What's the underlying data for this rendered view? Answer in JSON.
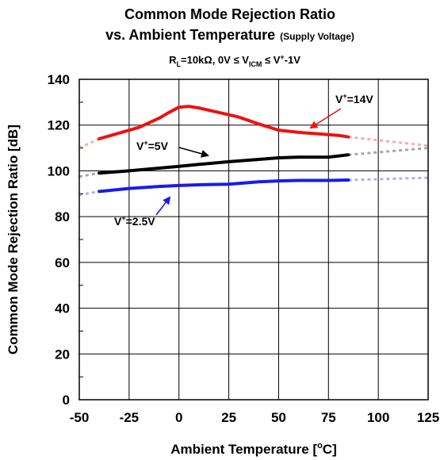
{
  "chart_data": {
    "type": "line",
    "title_line1": "Common Mode Rejection Ratio",
    "title_line2": "vs. Ambient Temperature",
    "title_suffix": "(Supply Voltage)",
    "condition": {
      "r_prefix": "R",
      "r_sub": "L",
      "r_text": "=10kΩ, 0V ≤ V",
      "v_sub": "ICM",
      "v_text": " ≤ V",
      "v_sup": "+",
      "v_tail": "-1V"
    },
    "xlabel": {
      "main": "Ambient Temperature [",
      "sup": "o",
      "tail": "C]"
    },
    "ylabel": "Common Mode Rejection Ratio [dB]",
    "xlim": [
      -50,
      125
    ],
    "ylim": [
      0,
      140
    ],
    "xticks": [
      "-50",
      "-25",
      "0",
      "25",
      "50",
      "75",
      "100",
      "125"
    ],
    "yticks": [
      "0",
      "20",
      "40",
      "60",
      "80",
      "100",
      "120",
      "140"
    ],
    "grid": true,
    "series": [
      {
        "name": "V+=14V",
        "label_main": "V",
        "label_sup": "+",
        "label_tail": "=14V",
        "color": "#ee1111",
        "x": [
          -40,
          -30,
          -20,
          -10,
          -5,
          0,
          5,
          10,
          20,
          30,
          40,
          50,
          60,
          70,
          80,
          85
        ],
        "y": [
          114,
          116.5,
          119,
          123,
          125.5,
          127.8,
          128.2,
          127.5,
          125.5,
          123.5,
          120.5,
          117.8,
          116.8,
          116.2,
          115.5,
          114.8
        ],
        "extrap_left": {
          "x": [
            -50,
            -40
          ],
          "y": [
            110,
            114
          ]
        },
        "extrap_right": {
          "x": [
            85,
            125
          ],
          "y": [
            114.8,
            111
          ]
        }
      },
      {
        "name": "V+=5V",
        "label_main": "V",
        "label_sup": "+",
        "label_tail": "=5V",
        "color": "#000000",
        "x": [
          -40,
          -25,
          -10,
          0,
          10,
          25,
          40,
          50,
          60,
          75,
          85
        ],
        "y": [
          99,
          100,
          101.2,
          102,
          102.8,
          104,
          105,
          105.7,
          106,
          106,
          107
        ],
        "extrap_left": {
          "x": [
            -50,
            -40
          ],
          "y": [
            97.5,
            99
          ]
        },
        "extrap_right": {
          "x": [
            85,
            125
          ],
          "y": [
            107,
            110
          ]
        }
      },
      {
        "name": "V+=2.5V",
        "label_main": "V",
        "label_sup": "+",
        "label_tail": "=2.5V",
        "color": "#1a1aee",
        "x": [
          -40,
          -25,
          -10,
          0,
          10,
          25,
          40,
          50,
          60,
          75,
          85
        ],
        "y": [
          91,
          92.3,
          93.2,
          93.6,
          93.9,
          94.2,
          95.2,
          95.6,
          95.8,
          95.8,
          96
        ],
        "extrap_left": {
          "x": [
            -50,
            -40
          ],
          "y": [
            89.5,
            91
          ]
        },
        "extrap_right": {
          "x": [
            85,
            125
          ],
          "y": [
            96,
            97
          ]
        }
      }
    ]
  }
}
